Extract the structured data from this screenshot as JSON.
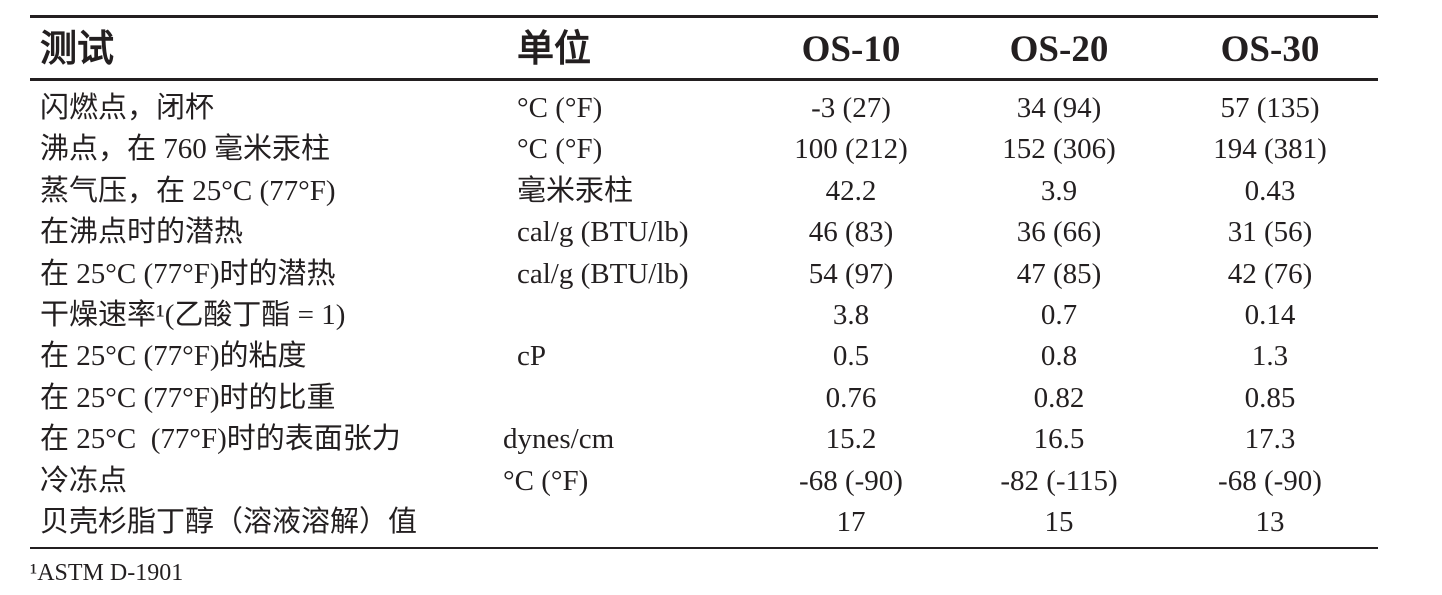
{
  "table": {
    "header": [
      "测试",
      "单位",
      "OS-10",
      "OS-20",
      "OS-30"
    ],
    "rows": [
      {
        "test": "闪燃点，闭杯",
        "unit": "°C (°F)",
        "values": [
          "-3 (27)",
          "34 (94)",
          "57 (135)"
        ]
      },
      {
        "test": "沸点，在 760 毫米汞柱",
        "unit": "°C (°F)",
        "values": [
          "100 (212)",
          "152 (306)",
          "194 (381)"
        ]
      },
      {
        "test": "蒸气压，在 25°C (77°F)",
        "unit": "毫米汞柱",
        "values": [
          "42.2",
          "3.9",
          "0.43"
        ]
      },
      {
        "test": "在沸点时的潜热",
        "unit": "cal/g (BTU/lb)",
        "values": [
          "46 (83)",
          "36 (66)",
          "31 (56)"
        ]
      },
      {
        "test": "在 25°C (77°F)时的潜热",
        "unit": "cal/g (BTU/lb)",
        "values": [
          "54 (97)",
          "47 (85)",
          "42 (76)"
        ]
      },
      {
        "test": "干燥速率¹(乙酸丁酯 = 1)",
        "values": [
          "3.8",
          "0.7",
          "0.14"
        ]
      },
      {
        "test": "在 25°C (77°F)的粘度",
        "unit": "cP",
        "values": [
          "0.5",
          "0.8",
          "1.3"
        ]
      },
      {
        "test": "在 25°C (77°F)时的比重",
        "values": [
          "0.76",
          "0.82",
          "0.85"
        ]
      },
      {
        "test": "在 25°C  (77°F)时的表面张力",
        "unit": "dynes/cm",
        "values": [
          "15.2",
          "16.5",
          "17.3"
        ]
      },
      {
        "test": "冷冻点",
        "unit": "°C (°F)",
        "values": [
          "-68 (-90)",
          "-82 (-115)",
          "-68 (-90)"
        ]
      },
      {
        "test": "贝壳杉脂丁醇（溶液溶解）值",
        "values": [
          "17",
          "15",
          "13"
        ]
      }
    ],
    "footnote": "¹ASTM D-1901"
  }
}
